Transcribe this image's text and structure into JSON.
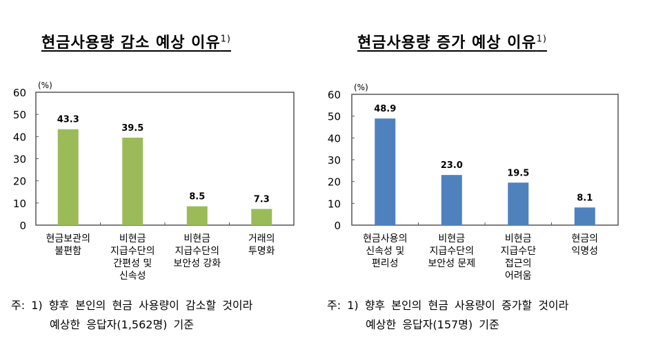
{
  "chart_data": [
    {
      "type": "bar",
      "title": "현금사용량 감소 예상 이유",
      "title_note": "1)",
      "ylabel": "(%)",
      "ylim": [
        0,
        60
      ],
      "yticks": [
        0,
        10,
        20,
        30,
        40,
        50,
        60
      ],
      "grid": false,
      "color": "#9BBB59",
      "categories": [
        [
          "현금보관의",
          "불편함"
        ],
        [
          "비현금",
          "지급수단의",
          "간편성 및",
          "신속성"
        ],
        [
          "비현금",
          "지급수단의",
          "보안성 강화"
        ],
        [
          "거래의",
          "투명화"
        ]
      ],
      "values": [
        43.3,
        39.5,
        8.5,
        7.3
      ],
      "labels": [
        "43.3",
        "39.5",
        "8.5",
        "7.3"
      ]
    },
    {
      "type": "bar",
      "title": "현금사용량 증가 예상 이유",
      "title_note": "1)",
      "ylabel": "(%)",
      "ylim": [
        0,
        60
      ],
      "yticks": [
        0,
        10,
        20,
        30,
        40,
        50,
        60
      ],
      "grid": false,
      "color": "#4F81BD",
      "categories": [
        [
          "현금사용의",
          "신속성 및",
          "편리성"
        ],
        [
          "비현금",
          "지급수단의",
          "보안성 문제"
        ],
        [
          "비현금",
          "지급수단",
          "접근의",
          "어려움"
        ],
        [
          "현금의",
          "익명성"
        ]
      ],
      "values": [
        48.9,
        23.0,
        19.5,
        8.1
      ],
      "labels": [
        "48.9",
        "23.0",
        "19.5",
        "8.1"
      ]
    }
  ],
  "notes": [
    {
      "line1": "주:  1)  향후  본인의  현금  사용량이  감소할  것이라",
      "line2": "예상한  응답자(1,562명)  기준"
    },
    {
      "line1": "주:  1)  향후  본인의  현금  사용량이  증가할  것이라",
      "line2": "예상한  응답자(157명)  기준"
    }
  ]
}
